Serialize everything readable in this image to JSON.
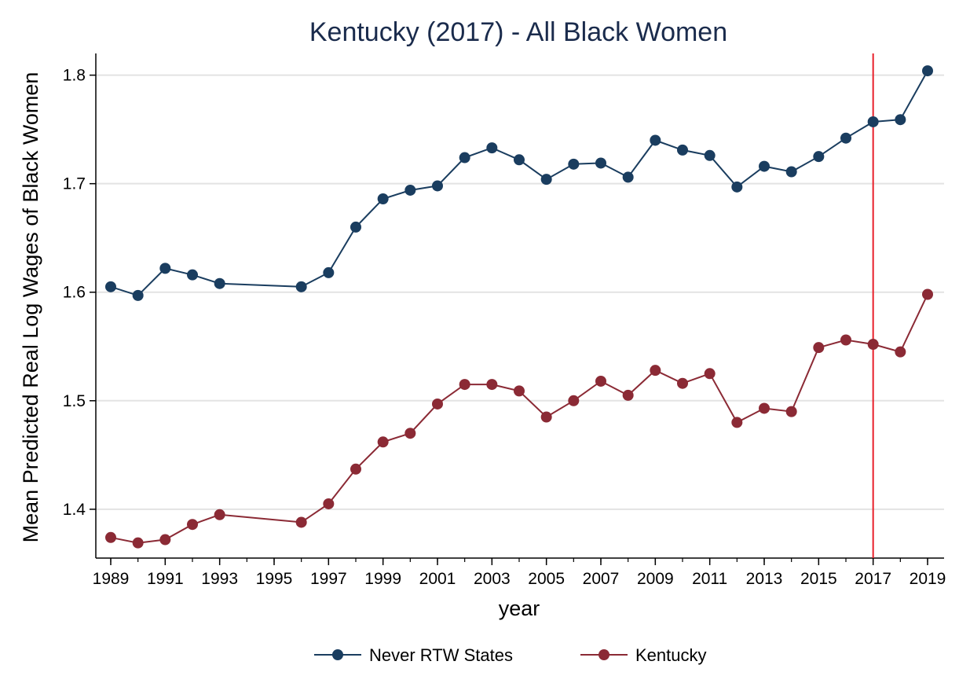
{
  "chart_data": {
    "type": "line",
    "title": "Kentucky (2017) - All Black Women",
    "xlabel": "year",
    "ylabel": "Mean Predicted Real Log Wages of Black Women",
    "xlim": [
      1989,
      2019
    ],
    "ylim": [
      1.355,
      1.82
    ],
    "xticks": [
      1989,
      1991,
      1993,
      1995,
      1997,
      1999,
      2001,
      2003,
      2005,
      2007,
      2009,
      2011,
      2013,
      2015,
      2017,
      2019
    ],
    "xtick_labels": [
      "1989",
      "1991",
      "1993",
      "1995",
      "1997",
      "1999",
      "2001",
      "2003",
      "2005",
      "2007",
      "2009",
      "2011",
      "2013",
      "2015",
      "2017",
      "2019"
    ],
    "yticks": [
      1.4,
      1.5,
      1.6,
      1.7,
      1.8
    ],
    "ytick_labels": [
      "1.4",
      "1.5",
      "1.6",
      "1.7",
      "1.8"
    ],
    "grid": "horizontal",
    "reference_line": {
      "x": 2017,
      "color": "#e8202a"
    },
    "legend_position": "bottom",
    "series": [
      {
        "name": "Never RTW States",
        "color": "#1a3d5f",
        "x": [
          1989,
          1990,
          1991,
          1992,
          1993,
          1996,
          1997,
          1998,
          1999,
          2000,
          2001,
          2002,
          2003,
          2004,
          2005,
          2006,
          2007,
          2008,
          2009,
          2010,
          2011,
          2012,
          2013,
          2014,
          2015,
          2016,
          2017,
          2018,
          2019
        ],
        "y": [
          1.605,
          1.597,
          1.622,
          1.616,
          1.608,
          1.605,
          1.618,
          1.66,
          1.686,
          1.694,
          1.698,
          1.724,
          1.733,
          1.722,
          1.704,
          1.718,
          1.719,
          1.706,
          1.74,
          1.731,
          1.726,
          1.697,
          1.716,
          1.711,
          1.725,
          1.742,
          1.757,
          1.759,
          1.804
        ]
      },
      {
        "name": "Kentucky",
        "color": "#8b2a35",
        "x": [
          1989,
          1990,
          1991,
          1992,
          1993,
          1996,
          1997,
          1998,
          1999,
          2000,
          2001,
          2002,
          2003,
          2004,
          2005,
          2006,
          2007,
          2008,
          2009,
          2010,
          2011,
          2012,
          2013,
          2014,
          2015,
          2016,
          2017,
          2018,
          2019
        ],
        "y": [
          1.374,
          1.369,
          1.372,
          1.386,
          1.395,
          1.388,
          1.405,
          1.437,
          1.462,
          1.47,
          1.497,
          1.515,
          1.515,
          1.509,
          1.485,
          1.5,
          1.518,
          1.505,
          1.528,
          1.516,
          1.525,
          1.48,
          1.493,
          1.49,
          1.549,
          1.556,
          1.552,
          1.545,
          1.598
        ]
      }
    ]
  }
}
